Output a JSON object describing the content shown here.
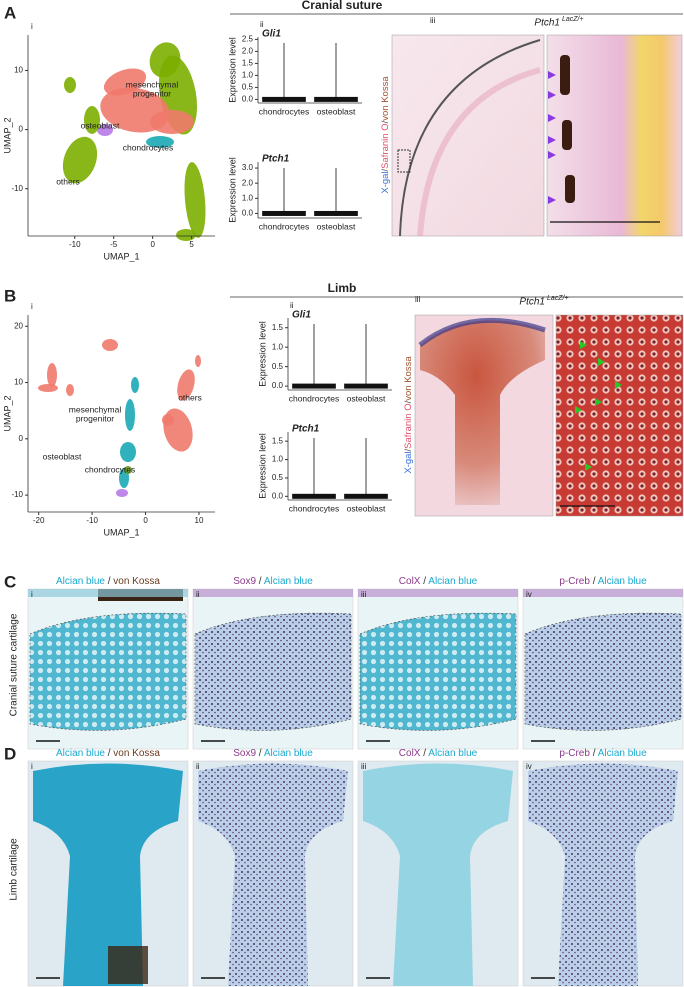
{
  "A": {
    "letter": "A",
    "title": "Cranial suture",
    "umap": {
      "label": "i",
      "xlabel": "UMAP_1",
      "ylabel": "UMAP_2",
      "xlim": [
        -16,
        8
      ],
      "ylim": [
        -18,
        16
      ],
      "xticks": [
        -10,
        -5,
        0,
        5
      ],
      "yticks": [
        -10,
        0,
        10
      ],
      "clusters": [
        {
          "name": [
            "mesenchymal",
            "progenitor"
          ],
          "color": "#f07a6b"
        },
        {
          "name": [
            "osteoblast"
          ],
          "color": "#b97ae8"
        },
        {
          "name": [
            "chondrocytes"
          ],
          "color": "#1aa9b4"
        },
        {
          "name": [
            "others"
          ],
          "color": "#7cae00"
        }
      ]
    },
    "violin": {
      "label": "ii",
      "ylabel": "Expression level",
      "categories": [
        {
          "name": "chondrocytes",
          "color": "#1aa9b4"
        },
        {
          "name": "osteoblast",
          "color": "#b066d6"
        }
      ],
      "genes": [
        {
          "name": "Gli1",
          "ylim": [
            -0.15,
            2.6
          ],
          "yticks": [
            {
              "value": 0,
              "label": "0.0"
            },
            {
              "value": 0.5,
              "label": "0.5"
            },
            {
              "value": 1,
              "label": "1.0"
            },
            {
              "value": 1.5,
              "label": "1.5"
            },
            {
              "value": 2,
              "label": "2.0"
            },
            {
              "value": 2.5,
              "label": "2.5"
            }
          ]
        },
        {
          "name": "Ptch1",
          "ylim": [
            -0.3,
            3.4
          ],
          "yticks": [
            {
              "value": 0,
              "label": "0.0"
            },
            {
              "value": 1,
              "label": "1.0"
            },
            {
              "value": 2,
              "label": "2.0"
            },
            {
              "value": 3,
              "label": "3.0"
            }
          ]
        }
      ]
    },
    "histology": {
      "label": "iii",
      "gene": "Ptch1",
      "genotype": "LacZ/+",
      "stain": [
        {
          "text": "X-gal",
          "color": "#3a6fd8"
        },
        {
          "text": "/",
          "color": "#555555"
        },
        {
          "text": "Safranin O",
          "color": "#e0506a"
        },
        {
          "text": "/",
          "color": "#555555"
        },
        {
          "text": "von Kossa",
          "color": "#a0522d"
        }
      ]
    }
  },
  "B": {
    "letter": "B",
    "title": "Limb",
    "umap": {
      "label": "i",
      "xlabel": "UMAP_1",
      "ylabel": "UMAP_2",
      "xlim": [
        -22,
        13
      ],
      "ylim": [
        -13,
        22
      ],
      "xticks": [
        -20,
        -10,
        0,
        10
      ],
      "yticks": [
        -10,
        0,
        10,
        20
      ],
      "clusters": [
        {
          "name": [
            "mesenchymal",
            "progenitor"
          ],
          "color": "#1aa9b4"
        },
        {
          "name": [
            "osteoblast"
          ],
          "color": "#b97ae8"
        },
        {
          "name": [
            "chondrocytes"
          ],
          "color": "#6a9a1f"
        },
        {
          "name": [
            "others"
          ],
          "color": "#f07a6b"
        }
      ]
    },
    "violin": {
      "label": "ii",
      "ylabel": "Expression level",
      "categories": [
        {
          "name": "chondrocytes",
          "color": "#6a9a1f"
        },
        {
          "name": "osteoblast",
          "color": "#b066d6"
        }
      ],
      "genes": [
        {
          "name": "Gli1",
          "ylim": [
            -0.1,
            1.75
          ],
          "yticks": [
            {
              "value": 0,
              "label": "0.0"
            },
            {
              "value": 0.5,
              "label": "0.5"
            },
            {
              "value": 1,
              "label": "1.0"
            },
            {
              "value": 1.5,
              "label": "1.5"
            }
          ]
        },
        {
          "name": "Ptch1",
          "ylim": [
            -0.1,
            1.75
          ],
          "yticks": [
            {
              "value": 0,
              "label": "0.0"
            },
            {
              "value": 0.5,
              "label": "0.5"
            },
            {
              "value": 1,
              "label": "1.0"
            },
            {
              "value": 1.5,
              "label": "1.5"
            }
          ]
        }
      ]
    },
    "histology": {
      "label": "iii",
      "gene": "Ptch1",
      "genotype": "LacZ/+",
      "stain": [
        {
          "text": "X-gal",
          "color": "#3a6fd8"
        },
        {
          "text": "/",
          "color": "#555555"
        },
        {
          "text": "Safranin O",
          "color": "#e0506a"
        },
        {
          "text": "/",
          "color": "#555555"
        },
        {
          "text": "von Kossa",
          "color": "#a0522d"
        }
      ]
    }
  },
  "C": {
    "letter": "C",
    "row_label": "Cranial suture cartilage",
    "panels": [
      {
        "label": "i",
        "stain": [
          {
            "text": "Alcian blue",
            "color": "#1aa9d0"
          },
          {
            "text": " / ",
            "color": "#333333"
          },
          {
            "text": "von Kossa",
            "color": "#6b3a1f"
          }
        ]
      },
      {
        "label": "ii",
        "stain": [
          {
            "text": "Sox9",
            "color": "#8a3a8a"
          },
          {
            "text": " / ",
            "color": "#333333"
          },
          {
            "text": "Alcian blue",
            "color": "#1aa9d0"
          }
        ]
      },
      {
        "label": "iii",
        "stain": [
          {
            "text": "ColX",
            "color": "#8a3a8a"
          },
          {
            "text": " / ",
            "color": "#333333"
          },
          {
            "text": "Alcian blue",
            "color": "#1aa9d0"
          }
        ]
      },
      {
        "label": "iv",
        "stain": [
          {
            "text": "p-Creb",
            "color": "#8a3a8a"
          },
          {
            "text": " / ",
            "color": "#333333"
          },
          {
            "text": "Alcian blue",
            "color": "#1aa9d0"
          }
        ]
      }
    ]
  },
  "D": {
    "letter": "D",
    "row_label": "Limb cartilage",
    "panels": [
      {
        "label": "i",
        "stain": [
          {
            "text": "Alcian blue",
            "color": "#1aa9d0"
          },
          {
            "text": " / ",
            "color": "#333333"
          },
          {
            "text": "von Kossa",
            "color": "#6b3a1f"
          }
        ]
      },
      {
        "label": "ii",
        "stain": [
          {
            "text": "Sox9",
            "color": "#8a3a8a"
          },
          {
            "text": " / ",
            "color": "#333333"
          },
          {
            "text": "Alcian blue",
            "color": "#1aa9d0"
          }
        ]
      },
      {
        "label": "iii",
        "stain": [
          {
            "text": "ColX",
            "color": "#8a3a8a"
          },
          {
            "text": " / ",
            "color": "#333333"
          },
          {
            "text": "Alcian blue",
            "color": "#1aa9d0"
          }
        ]
      },
      {
        "label": "iv",
        "stain": [
          {
            "text": "p-Creb",
            "color": "#8a3a8a"
          },
          {
            "text": " / ",
            "color": "#333333"
          },
          {
            "text": "Alcian blue",
            "color": "#1aa9d0"
          }
        ]
      }
    ]
  }
}
